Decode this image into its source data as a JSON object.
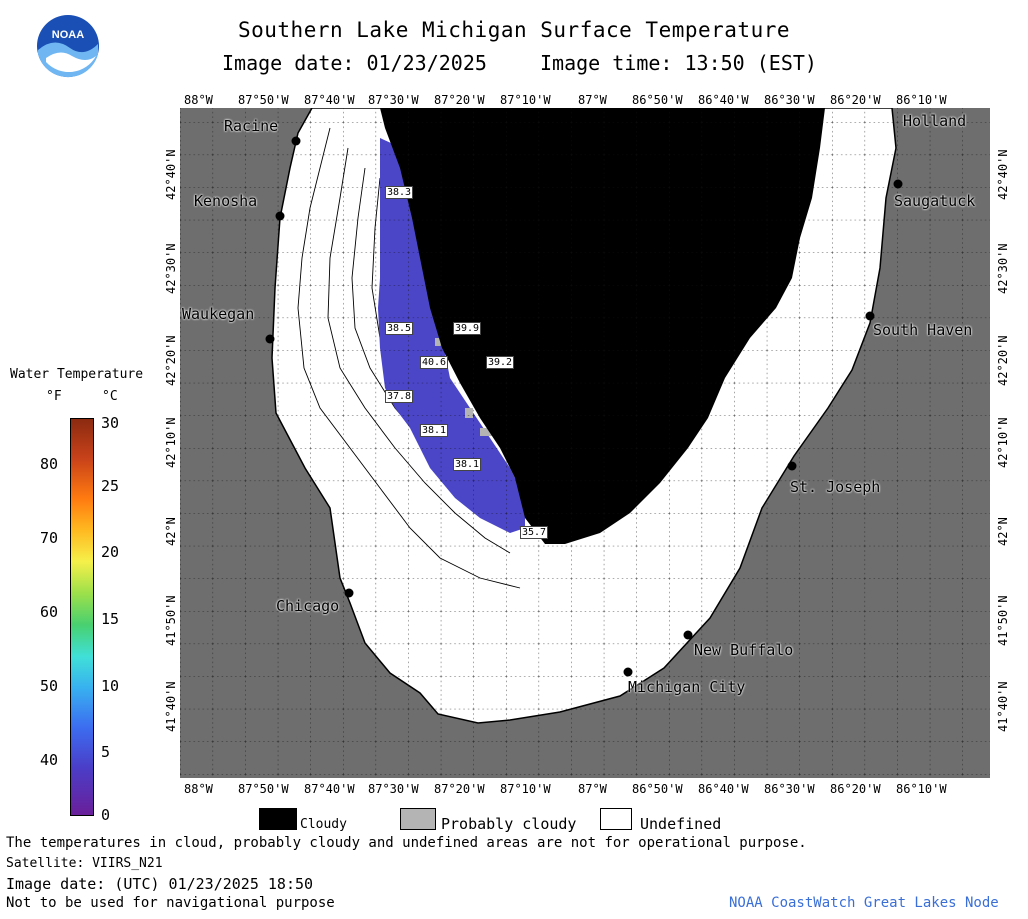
{
  "header": {
    "title": "Southern Lake Michigan Surface Temperature",
    "image_date": "Image date: 01/23/2025",
    "image_time": "Image time: 13:50 (EST)"
  },
  "logo": {
    "text": "NOAA"
  },
  "longitude_labels": [
    "88°W",
    "87°50'W",
    "87°40'W",
    "87°30'W",
    "87°20'W",
    "87°10'W",
    "87°W",
    "86°50'W",
    "86°40'W",
    "86°30'W",
    "86°20'W",
    "86°10'W"
  ],
  "latitude_labels": [
    "42°40'N",
    "42°30'N",
    "42°20'N",
    "42°10'N",
    "42°N",
    "41°50'N",
    "41°40'N"
  ],
  "cities": [
    "Racine",
    "Kenosha",
    "Waukegan",
    "Chicago",
    "Holland",
    "Saugatuck",
    "South Haven",
    "St. Joseph",
    "New Buffalo",
    "Michigan City"
  ],
  "temperature_labels": [
    "38.3",
    "38.5",
    "39.9",
    "40.6",
    "39.2",
    "37.8",
    "38.1",
    "38.1",
    "35.7"
  ],
  "colorbar": {
    "title": "Water Temperature",
    "unit_f": "°F",
    "unit_c": "°C",
    "f_ticks": [
      "80",
      "70",
      "60",
      "50",
      "40"
    ],
    "c_ticks": [
      "30",
      "25",
      "20",
      "15",
      "10",
      "5",
      "0"
    ]
  },
  "legend": {
    "cloudy": "Cloudy",
    "probably_cloudy": "Probably cloudy",
    "undefined": "Undefined"
  },
  "footer": {
    "disclaimer": "The temperatures in cloud, probably cloudy and undefined areas are not for operational purpose.",
    "satellite": "Satellite: VIIRS_N21",
    "utc_date": "Image date: (UTC) 01/23/2025  18:50",
    "navigation": "Not to be used for navigational purpose",
    "credit": "NOAA CoastWatch Great Lakes Node"
  },
  "colors": {
    "land": "#6e6e6e",
    "cloud": "#000000",
    "probably_cloudy": "#b4b4b4",
    "water_cold": "#4b46c8",
    "credit_text": "#3a6fd8"
  }
}
